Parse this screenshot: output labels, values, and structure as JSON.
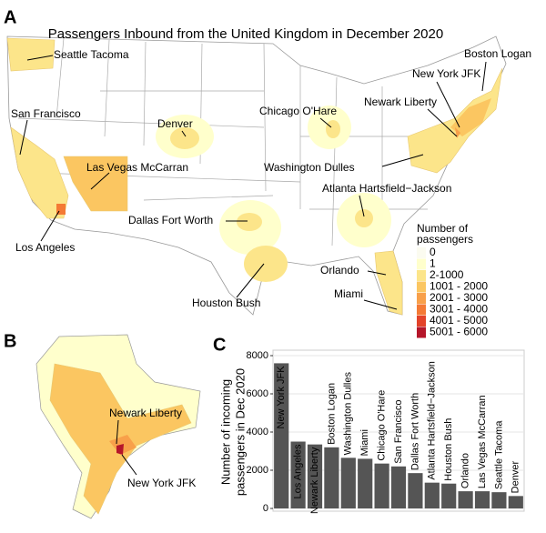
{
  "panel_labels": [
    "A",
    "B",
    "C"
  ],
  "map": {
    "title": "Passengers Inbound from the United Kingdom in December 2020",
    "labels": [
      "Seattle Tacoma",
      "Boston Logan",
      "New York JFK",
      "Newark Liberty",
      "San Francisco",
      "Chicago O'Hare",
      "Denver",
      "Washington Dulles",
      "Las Vegas McCarran",
      "Atlanta Hartsfield−Jackson",
      "Dallas Fort Worth",
      "Los Angeles",
      "Orlando",
      "Miami",
      "Houston Bush"
    ],
    "legend_title": [
      "Number of",
      "passengers"
    ],
    "legend": [
      {
        "label": "0",
        "color": "#fbfbf0"
      },
      {
        "label": "1",
        "color": "#ffffcc"
      },
      {
        "label": "2-1000",
        "color": "#fce58a"
      },
      {
        "label": "1001 - 2000",
        "color": "#fbc661"
      },
      {
        "label": "2001 - 3000",
        "color": "#f8a04a"
      },
      {
        "label": "3001 - 4000",
        "color": "#f47a35"
      },
      {
        "label": "4001 - 5000",
        "color": "#e3432a"
      },
      {
        "label": "5001 - 6000",
        "color": "#b5162a"
      }
    ],
    "inset_labels": [
      "Newark Liberty",
      "New York JFK"
    ]
  },
  "chart_data": {
    "type": "bar",
    "ylabel": [
      "Number of incoming",
      "passengers in Dec 2020"
    ],
    "categories": [
      "New York JFK",
      "Los Angeles",
      "Newark Liberty",
      "Boston Logan",
      "Washington Dulles",
      "Miami",
      "Chicago O'Hare",
      "San Francisco",
      "Dallas Fort Worth",
      "Atlanta Hartsfield−Jackson",
      "Houston Bush",
      "Orlando",
      "Las Vegas McCarran",
      "Seattle Tacoma",
      "Denver"
    ],
    "values": [
      7600,
      3500,
      3350,
      3200,
      2650,
      2600,
      2350,
      2200,
      1850,
      1350,
      1300,
      900,
      900,
      850,
      650
    ],
    "color": "#555555",
    "ylim": [
      0,
      8000
    ],
    "yticks": [
      0,
      2000,
      4000,
      6000,
      8000
    ],
    "grid": true
  }
}
